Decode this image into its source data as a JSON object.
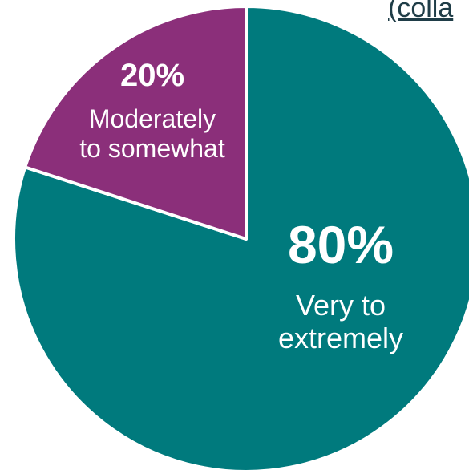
{
  "header": {
    "partial_text": "(colla"
  },
  "chart_data": {
    "type": "pie",
    "categories": [
      "Very to extremely",
      "Moderately to somewhat"
    ],
    "values": [
      80,
      20
    ],
    "colors": [
      "#007a7d",
      "#8b2f7a"
    ],
    "slices": [
      {
        "value_label": "80%",
        "label_lines": [
          "Very to",
          "extremely"
        ]
      },
      {
        "value_label": "20%",
        "label_lines": [
          "Moderately",
          "to somewhat"
        ]
      }
    ]
  }
}
